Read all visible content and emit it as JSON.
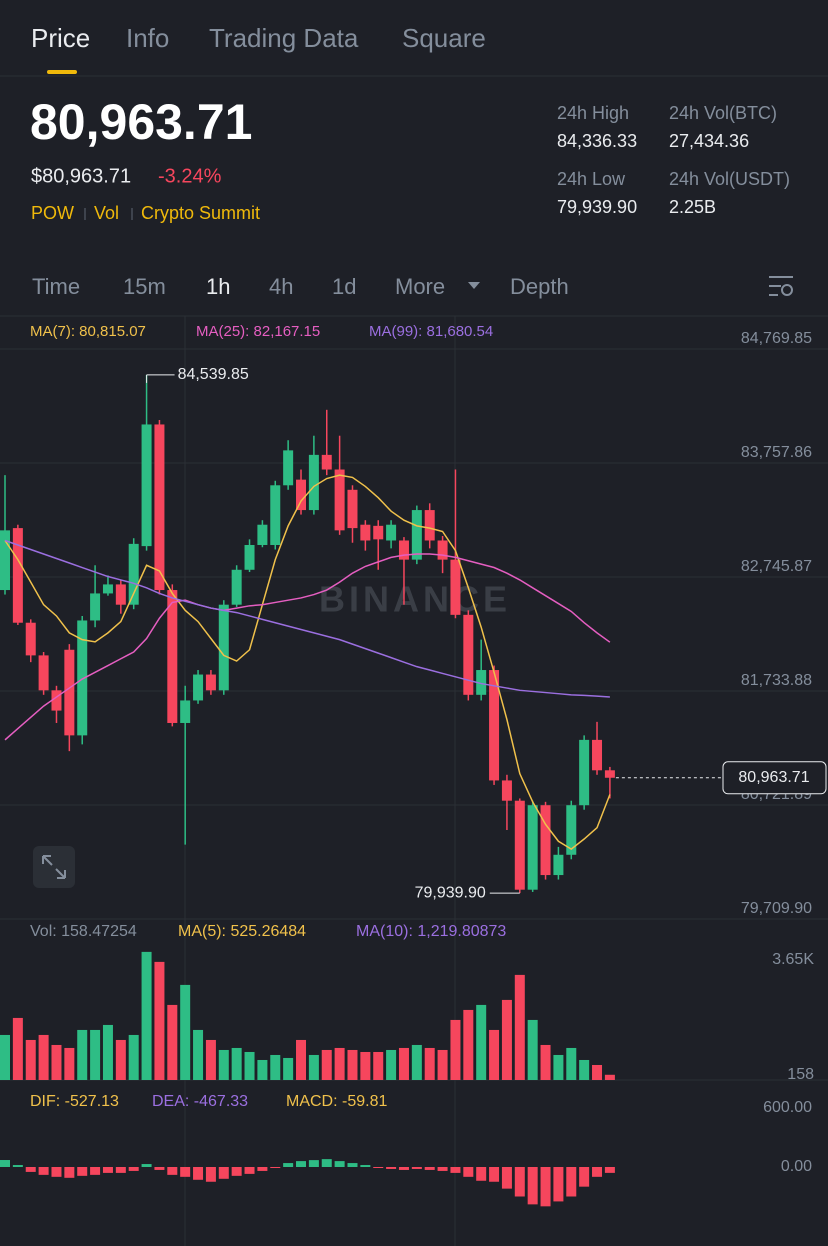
{
  "header": {
    "tabs": [
      "Price",
      "Info",
      "Trading Data",
      "Square"
    ],
    "price": "80,963.71",
    "fiat": "$80,963.71",
    "change": "-3.24%",
    "tags": [
      "POW",
      "Vol",
      "Crypto Summit"
    ],
    "stats": [
      {
        "label": "24h High",
        "value": "84,336.33"
      },
      {
        "label": "24h Vol(BTC)",
        "value": "27,434.36"
      },
      {
        "label": "24h Low",
        "value": "79,939.90"
      },
      {
        "label": "24h Vol(USDT)",
        "value": "2.25B"
      }
    ]
  },
  "toolbar": {
    "intervals": [
      "Time",
      "15m",
      "1h",
      "4h",
      "1d",
      "More",
      "Depth"
    ]
  },
  "chart_data": [
    {
      "type": "candlestick",
      "watermark": "BINANCE",
      "up_color": "#2ebd85",
      "down_color": "#f6465d",
      "ylim": [
        79709.9,
        84769.85
      ],
      "yticks": [
        {
          "value": 84769.85,
          "label": "84,769.85"
        },
        {
          "value": 83757.86,
          "label": "83,757.86"
        },
        {
          "value": 82745.87,
          "label": "82,745.87"
        },
        {
          "value": 81733.88,
          "label": "81,733.88"
        },
        {
          "value": 80721.89,
          "label": "80,721.89"
        },
        {
          "value": 79709.9,
          "label": "79,709.90"
        }
      ],
      "open": [
        82630,
        83180,
        82340,
        82050,
        81740,
        82100,
        81340,
        82360,
        82600,
        82680,
        82500,
        83020,
        84100,
        82630,
        81450,
        81650,
        81880,
        81740,
        82500,
        82810,
        83030,
        83030,
        83560,
        83610,
        83340,
        83830,
        83700,
        83520,
        83210,
        83200,
        83070,
        83070,
        82900,
        83340,
        83070,
        82900,
        82410,
        81700,
        81920,
        80940,
        80760,
        79970,
        80720,
        80100,
        80280,
        80720,
        81300,
        81030
      ],
      "close": [
        83160,
        82340,
        82050,
        81740,
        81560,
        81340,
        82360,
        82600,
        82680,
        82500,
        83040,
        84100,
        82630,
        81450,
        81650,
        81880,
        81740,
        82500,
        82810,
        83030,
        83210,
        83560,
        83870,
        83340,
        83830,
        83700,
        83160,
        83180,
        83070,
        83080,
        83210,
        82900,
        83340,
        83070,
        82900,
        82410,
        81700,
        81920,
        80940,
        80760,
        79970,
        80720,
        80100,
        80280,
        80720,
        81300,
        81030,
        80963.71
      ],
      "high": [
        83650,
        83210,
        82370,
        82080,
        81780,
        82150,
        82400,
        82850,
        82760,
        82720,
        83090,
        84539.85,
        84140,
        82680,
        81780,
        81920,
        81920,
        82540,
        82850,
        83080,
        83250,
        83600,
        83960,
        83700,
        84000,
        84230,
        84000,
        83560,
        83250,
        83250,
        83250,
        83100,
        83380,
        83400,
        83110,
        83700,
        82450,
        82190,
        81960,
        80990,
        80780,
        80760,
        80750,
        80350,
        80760,
        81340,
        81460,
        81060
      ],
      "low": [
        82590,
        82320,
        81990,
        81700,
        81450,
        81200,
        81260,
        82300,
        82580,
        82420,
        82460,
        82980,
        82590,
        81420,
        80370,
        81620,
        81700,
        81700,
        82480,
        82790,
        83010,
        82990,
        83520,
        83300,
        83300,
        83650,
        83120,
        83050,
        82980,
        82810,
        83000,
        82500,
        82860,
        83000,
        82780,
        82380,
        81650,
        81650,
        80900,
        80500,
        79939.9,
        79950,
        80060,
        80060,
        80240,
        80680,
        80990,
        80780
      ],
      "series": [
        {
          "name": "MA(7): 80,815.07",
          "color": "#f0c14b",
          "values": [
            83070,
            82900,
            82700,
            82500,
            82400,
            82250,
            82190,
            82170,
            82250,
            82350,
            82600,
            82850,
            82800,
            82600,
            82450,
            82350,
            82200,
            82050,
            82000,
            82100,
            82500,
            82900,
            83200,
            83420,
            83550,
            83620,
            83650,
            83630,
            83550,
            83450,
            83330,
            83250,
            83200,
            83180,
            83150,
            82980,
            82650,
            82300,
            81900,
            81480,
            81000,
            80750,
            80550,
            80400,
            80330,
            80420,
            80520,
            80815.07
          ]
        },
        {
          "name": "MA(25): 82,167.15",
          "color": "#e55ec1",
          "values": [
            81300,
            81400,
            81500,
            81600,
            81680,
            81760,
            81840,
            81900,
            81960,
            82020,
            82080,
            82200,
            82380,
            82520,
            82540,
            82500,
            82470,
            82450,
            82470,
            82490,
            82500,
            82520,
            82540,
            82560,
            82590,
            82630,
            82700,
            82780,
            82840,
            82880,
            82920,
            82940,
            82950,
            82950,
            82940,
            82920,
            82890,
            82860,
            82830,
            82780,
            82720,
            82650,
            82580,
            82510,
            82440,
            82340,
            82250,
            82167.15
          ]
        },
        {
          "name": "MA(99): 81,680.54",
          "color": "#9b6fe0",
          "values": [
            83070,
            83030,
            82990,
            82950,
            82910,
            82870,
            82830,
            82790,
            82750,
            82720,
            82690,
            82650,
            82600,
            82560,
            82530,
            82500,
            82470,
            82450,
            82430,
            82400,
            82370,
            82340,
            82310,
            82280,
            82250,
            82220,
            82190,
            82150,
            82110,
            82070,
            82030,
            81990,
            81950,
            81920,
            81890,
            81860,
            81830,
            81800,
            81780,
            81760,
            81740,
            81730,
            81720,
            81710,
            81700,
            81695,
            81688,
            81680.54
          ]
        }
      ],
      "high_label": {
        "value": 84539.85,
        "label": "84,539.85"
      },
      "low_label": {
        "value": 79939.9,
        "label": "79,939.90"
      },
      "current": {
        "value": 80963.71,
        "label": "80,963.71"
      }
    },
    {
      "type": "volume",
      "ylim": [
        0,
        4100
      ],
      "yticks": [
        {
          "value": 3650,
          "label": "3.65K"
        },
        158
      ],
      "legend": [
        {
          "text": "Vol: 158.47254",
          "color": "#848e9c"
        },
        {
          "text": "MA(5): 525.26484",
          "color": "#f0c14b"
        },
        {
          "text": "MA(10): 1,219.80873",
          "color": "#9b6fe0"
        }
      ],
      "values": [
        1368,
        1885,
        1216,
        1368,
        1064,
        973,
        1520,
        1520,
        1672,
        1216,
        1368,
        3891,
        3587,
        2280,
        2888,
        1520,
        1216,
        912,
        973,
        851,
        608,
        760,
        669,
        1216,
        760,
        912,
        973,
        912,
        851,
        851,
        912,
        973,
        1064,
        973,
        912,
        1824,
        2128,
        2280,
        1520,
        2432,
        3192,
        1824,
        1064,
        760,
        973,
        608,
        456,
        158.47254
      ]
    },
    {
      "type": "macd",
      "ylim": [
        -661,
        783
      ],
      "yticks": [
        {
          "value": 600,
          "label": "600.00"
        },
        {
          "value": 0,
          "label": "0.00"
        }
      ],
      "legend": [
        {
          "text": "DIF: -527.13",
          "color": "#f0c14b"
        },
        {
          "text": "DEA: -467.33",
          "color": "#9b6fe0"
        },
        {
          "text": "MACD: -59.81",
          "color": "#f0c14b"
        }
      ],
      "values": [
        71,
        20,
        -50,
        -80,
        -100,
        -110,
        -90,
        -80,
        -60,
        -60,
        -40,
        30,
        -30,
        -80,
        -100,
        -130,
        -150,
        -120,
        -90,
        -70,
        -40,
        -10,
        40,
        60,
        70,
        80,
        60,
        40,
        20,
        -10,
        -20,
        -30,
        -20,
        -30,
        -40,
        -60,
        -100,
        -140,
        -150,
        -220,
        -300,
        -380,
        -400,
        -350,
        -300,
        -200,
        -100,
        -59.81
      ]
    }
  ]
}
